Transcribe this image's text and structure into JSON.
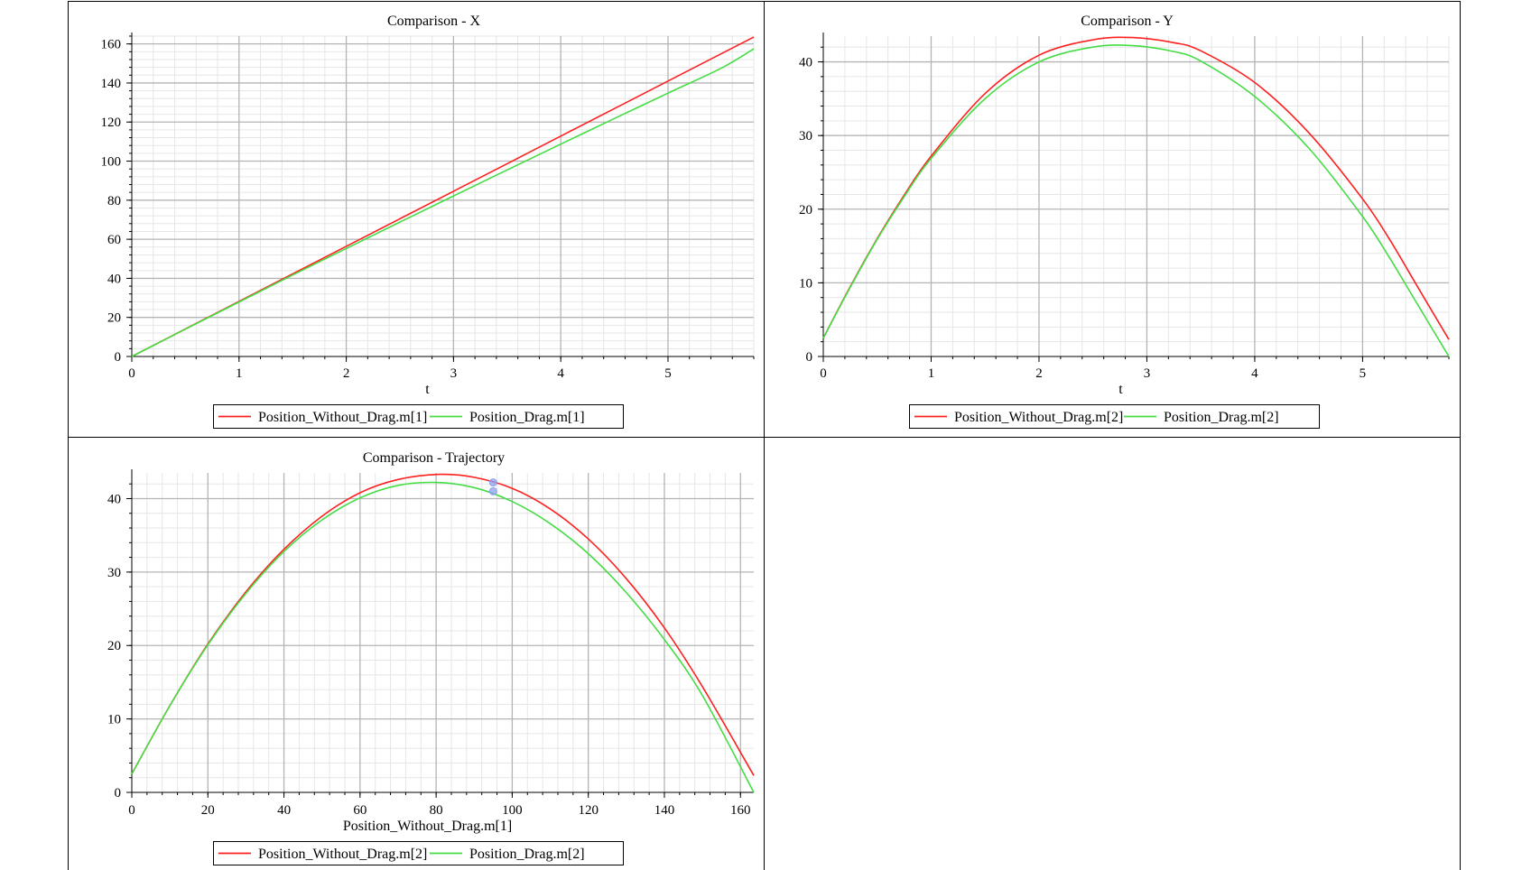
{
  "colors": {
    "series_red": "#ff2020",
    "series_green": "#44dd44",
    "grid_major": "#b4b4b4",
    "grid_minor": "#e6e6e6",
    "marker": "#8ea0f0"
  },
  "chart_data": [
    {
      "id": "x",
      "type": "line",
      "title": "Comparison - X",
      "xlabel": "t",
      "ylabel": "",
      "xlim": [
        0,
        5.8
      ],
      "ylim": [
        0,
        164
      ],
      "xticks": [
        0,
        1,
        2,
        3,
        4,
        5
      ],
      "yticks": [
        0,
        20,
        40,
        60,
        80,
        100,
        120,
        140,
        160
      ],
      "grid": true,
      "legend_position": "bottom",
      "series": [
        {
          "name": "Position_Without_Drag.m[1]",
          "color": "#ff2020",
          "x": [
            0,
            0.5,
            1,
            1.5,
            2,
            2.5,
            3,
            3.5,
            4,
            4.5,
            5,
            5.5,
            5.8
          ],
          "y": [
            0,
            14.1,
            28.2,
            42.3,
            56.4,
            70.5,
            84.6,
            98.7,
            112.8,
            126.9,
            141.0,
            155.1,
            163.5
          ]
        },
        {
          "name": "Position_Drag.m[1]",
          "color": "#44dd44",
          "x": [
            0,
            0.5,
            1,
            1.5,
            2,
            2.5,
            3,
            3.5,
            4,
            4.5,
            5,
            5.5,
            5.8
          ],
          "y": [
            0,
            14.0,
            27.9,
            41.7,
            55.3,
            68.8,
            82.2,
            95.5,
            108.7,
            121.8,
            134.8,
            147.7,
            157.5
          ]
        }
      ]
    },
    {
      "id": "y",
      "type": "line",
      "title": "Comparison - Y",
      "xlabel": "t",
      "ylabel": "",
      "xlim": [
        0,
        5.8
      ],
      "ylim": [
        0,
        43.5
      ],
      "xticks": [
        0,
        1,
        2,
        3,
        4,
        5
      ],
      "yticks": [
        0,
        10,
        20,
        30,
        40
      ],
      "grid": true,
      "legend_position": "bottom",
      "series": [
        {
          "name": "Position_Without_Drag.m[2]",
          "color": "#ff2020",
          "x": [
            0,
            0.25,
            0.5,
            0.75,
            1,
            1.5,
            2,
            2.5,
            2.87,
            3.25,
            3.5,
            4,
            4.5,
            5,
            5.25,
            5.5,
            5.8
          ],
          "y": [
            2.5,
            9.5,
            16.0,
            21.9,
            27.2,
            35.7,
            40.9,
            43.0,
            43.3,
            42.6,
            41.5,
            37.2,
            30.4,
            21.4,
            15.9,
            9.7,
            2.3
          ]
        },
        {
          "name": "Position_Drag.m[2]",
          "color": "#44dd44",
          "x": [
            0,
            0.25,
            0.5,
            0.75,
            1,
            1.5,
            2,
            2.5,
            2.87,
            3.25,
            3.5,
            4,
            4.5,
            5,
            5.25,
            5.5,
            5.8
          ],
          "y": [
            2.5,
            9.4,
            15.9,
            21.7,
            26.9,
            35.0,
            40.0,
            42.0,
            42.2,
            41.4,
            40.1,
            35.3,
            28.3,
            19.0,
            13.4,
            7.3,
            0
          ]
        }
      ]
    },
    {
      "id": "traj",
      "type": "line",
      "title": "Comparison - Trajectory",
      "xlabel": "Position_Without_Drag.m[1]",
      "ylabel": "",
      "xlim": [
        0,
        163.5
      ],
      "ylim": [
        0,
        43.5
      ],
      "xticks": [
        0,
        20,
        40,
        60,
        80,
        100,
        120,
        140,
        160
      ],
      "yticks": [
        0,
        10,
        20,
        30,
        40
      ],
      "grid": true,
      "legend_position": "bottom",
      "series": [
        {
          "name": "Position_Without_Drag.m[2]",
          "color": "#ff2020",
          "x": [
            0,
            10,
            20,
            30,
            40,
            50,
            60,
            70,
            81,
            90,
            100,
            110,
            120,
            130,
            140,
            150,
            163.5
          ],
          "y": [
            2.5,
            11.8,
            20.2,
            27.3,
            33.1,
            37.6,
            40.8,
            42.6,
            43.3,
            42.9,
            41.4,
            38.6,
            34.5,
            29.1,
            22.4,
            14.4,
            2.3
          ]
        },
        {
          "name": "Position_Drag.m[2]",
          "color": "#44dd44",
          "x": [
            0,
            10,
            20,
            30,
            40,
            50,
            60,
            70,
            80,
            90,
            100,
            110,
            120,
            130,
            140,
            150,
            163.5
          ],
          "y": [
            2.5,
            11.8,
            20.1,
            27.1,
            32.8,
            37.1,
            40.1,
            41.8,
            42.2,
            41.5,
            39.6,
            36.6,
            32.5,
            27.2,
            20.8,
            13.2,
            0
          ]
        }
      ],
      "markers": [
        {
          "x": 95,
          "y": 42.2
        },
        {
          "x": 95,
          "y": 41.0
        }
      ]
    }
  ]
}
